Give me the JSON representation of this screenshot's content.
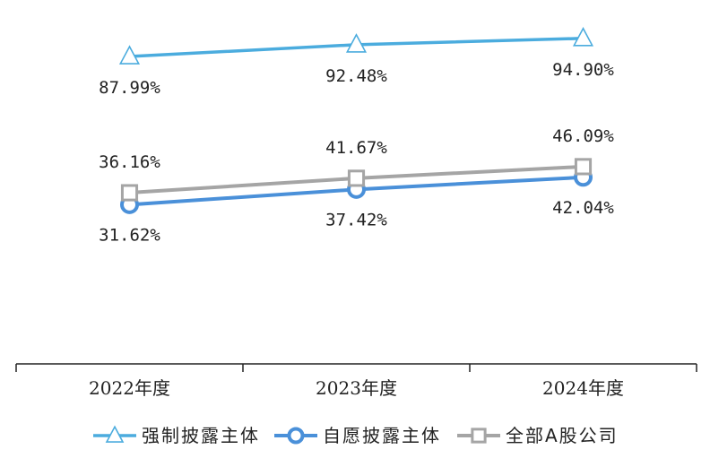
{
  "chart_data": {
    "type": "line",
    "categories": [
      "2022年度",
      "2023年度",
      "2024年度"
    ],
    "series": [
      {
        "name": "强制披露主体",
        "values": [
          87.99,
          92.48,
          94.9
        ],
        "labels": [
          "87.99%",
          "92.48%",
          "94.90%"
        ],
        "color": "#4BACDE",
        "marker": "triangle"
      },
      {
        "name": "自愿披露主体",
        "values": [
          31.62,
          37.42,
          42.04
        ],
        "labels": [
          "31.62%",
          "37.42%",
          "42.04%"
        ],
        "color": "#4A90D9",
        "marker": "circle"
      },
      {
        "name": "全部A股公司",
        "values": [
          36.16,
          41.67,
          46.09
        ],
        "labels": [
          "36.16%",
          "41.67%",
          "46.09%"
        ],
        "color": "#A5A5A5",
        "marker": "square"
      }
    ],
    "ylim": [
      0,
      100
    ],
    "grid": false,
    "legend_position": "bottom"
  }
}
